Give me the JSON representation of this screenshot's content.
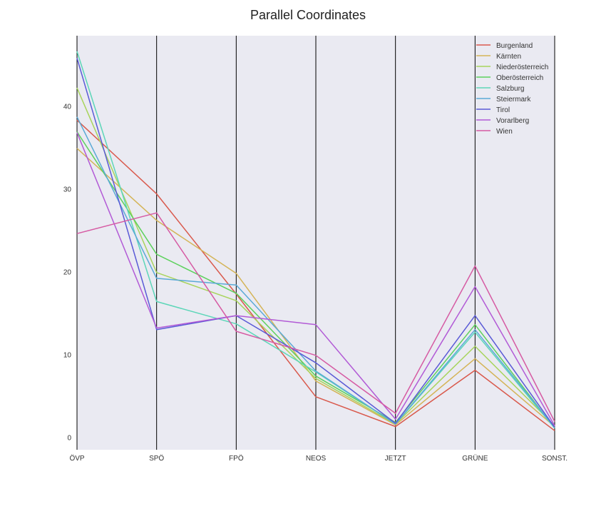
{
  "chart_data": {
    "type": "parallel_coordinates",
    "title": "Parallel Coordinates",
    "axes": [
      "ÖVP",
      "SPÖ",
      "FPÖ",
      "NEOS",
      "JETZT",
      "GRÜNE",
      "SONST."
    ],
    "yticks": [
      0,
      10,
      20,
      30,
      40
    ],
    "ylim": [
      -1.5,
      48.5
    ],
    "grid": false,
    "legend_position": "top-right",
    "background_color": "#eaeaf2",
    "series": [
      {
        "name": "Burgenland",
        "color": "#d9594c",
        "values": [
          38.3,
          29.4,
          17.3,
          4.9,
          1.3,
          8.1,
          0.8
        ]
      },
      {
        "name": "Kärnten",
        "color": "#d4b457",
        "values": [
          34.9,
          26.2,
          19.8,
          6.8,
          1.5,
          9.5,
          1.3
        ]
      },
      {
        "name": "Niederösterreich",
        "color": "#a8d45c",
        "values": [
          42.2,
          19.9,
          16.5,
          7.1,
          1.6,
          11.0,
          1.4
        ]
      },
      {
        "name": "Oberösterreich",
        "color": "#5cd15c",
        "values": [
          36.9,
          22.1,
          17.4,
          7.4,
          1.8,
          13.6,
          1.1
        ]
      },
      {
        "name": "Salzburg",
        "color": "#5cd6b8",
        "values": [
          46.6,
          16.4,
          13.7,
          7.9,
          1.6,
          12.7,
          1.1
        ]
      },
      {
        "name": "Steiermark",
        "color": "#5aa9d6",
        "values": [
          38.7,
          19.2,
          18.4,
          8.0,
          1.6,
          13.0,
          1.2
        ]
      },
      {
        "name": "Tirol",
        "color": "#5a5ad6",
        "values": [
          45.8,
          13.0,
          14.7,
          9.0,
          1.7,
          14.7,
          1.2
        ]
      },
      {
        "name": "Vorarlberg",
        "color": "#b25ad6",
        "values": [
          36.8,
          13.2,
          14.7,
          13.6,
          2.2,
          18.2,
          1.4
        ]
      },
      {
        "name": "Wien",
        "color": "#d65aa3",
        "values": [
          24.6,
          27.1,
          12.8,
          9.9,
          2.9,
          20.7,
          1.9
        ]
      }
    ]
  }
}
